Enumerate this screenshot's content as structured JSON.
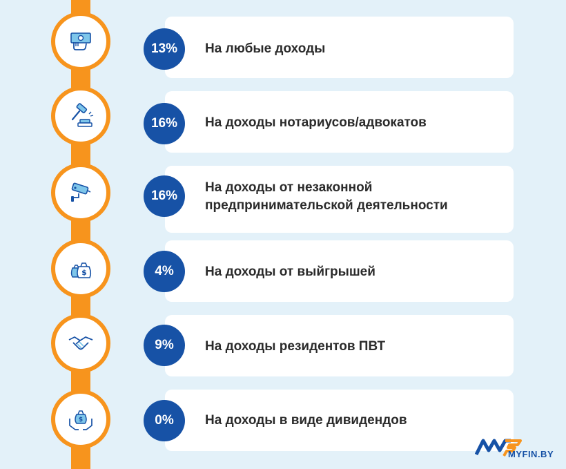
{
  "colors": {
    "accent": "#f7941d",
    "badge": "#1752a6",
    "background": "#e3f1f9",
    "card": "#ffffff"
  },
  "items": [
    {
      "percent": "13%",
      "label": "На любые доходы",
      "icon": "money-hand-icon"
    },
    {
      "percent": "16%",
      "label": "На доходы нотариусов/адвокатов",
      "icon": "gavel-icon"
    },
    {
      "percent": "16%",
      "label_line1": "На доходы от незаконной",
      "label_line2": "предпринимательской деятельности",
      "icon": "security-camera-icon"
    },
    {
      "percent": "4%",
      "label": "На доходы от выйгрышей",
      "icon": "money-bags-icon"
    },
    {
      "percent": "9%",
      "label": "На доходы резидентов ПВТ",
      "icon": "handshake-icon"
    },
    {
      "percent": "0%",
      "label": "На доходы в виде дивидендов",
      "icon": "hands-money-bag-icon"
    }
  ],
  "logo": {
    "text": "MYFIN.BY"
  }
}
